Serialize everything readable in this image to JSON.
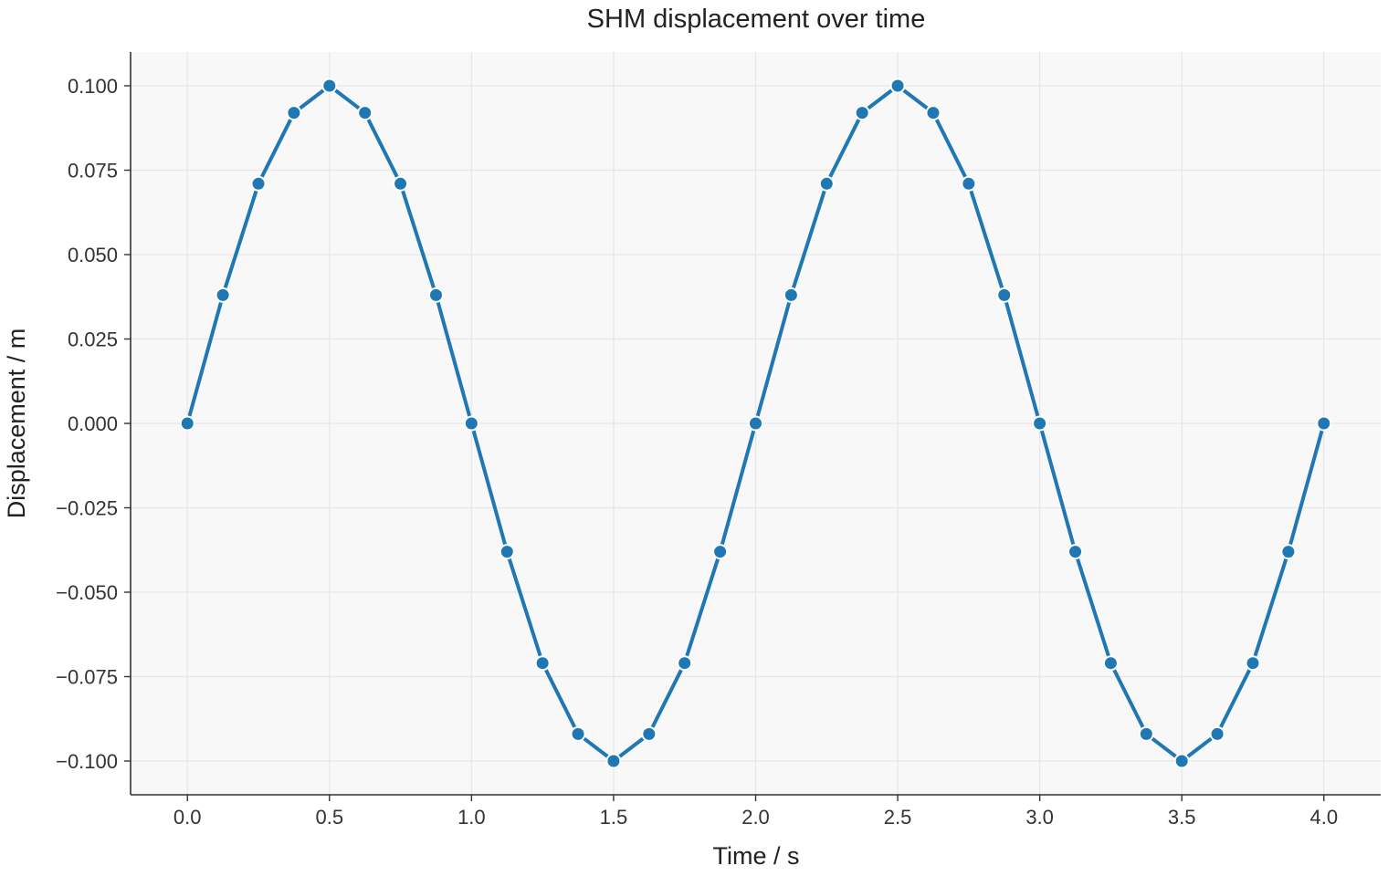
{
  "chart_data": {
    "type": "line",
    "title": "SHM displacement over time",
    "xlabel": "Time / s",
    "ylabel": "Displacement / m",
    "xlim": [
      -0.2,
      4.2
    ],
    "ylim": [
      -0.11,
      0.11
    ],
    "x_ticks": [
      0.0,
      0.5,
      1.0,
      1.5,
      2.0,
      2.5,
      3.0,
      3.5,
      4.0
    ],
    "x_tick_labels": [
      "0.0",
      "0.5",
      "1.0",
      "1.5",
      "2.0",
      "2.5",
      "3.0",
      "3.5",
      "4.0"
    ],
    "y_ticks": [
      0.1,
      0.075,
      0.05,
      0.025,
      0.0,
      -0.025,
      -0.05,
      -0.075,
      -0.1
    ],
    "y_tick_labels": [
      "0.100",
      "0.075",
      "0.050",
      "0.025",
      "0.000",
      "−0.025",
      "−0.050",
      "−0.075",
      "−0.100"
    ],
    "grid": true,
    "series": [
      {
        "color": "#1f77b4",
        "x": [
          0.0,
          0.125,
          0.25,
          0.375,
          0.5,
          0.625,
          0.75,
          0.875,
          1.0,
          1.125,
          1.25,
          1.375,
          1.5,
          1.625,
          1.75,
          1.875,
          2.0,
          2.125,
          2.25,
          2.375,
          2.5,
          2.625,
          2.75,
          2.875,
          3.0,
          3.125,
          3.25,
          3.375,
          3.5,
          3.625,
          3.75,
          3.875,
          4.0
        ],
        "y": [
          0.0,
          0.038,
          0.071,
          0.092,
          0.1,
          0.092,
          0.071,
          0.038,
          0.0,
          -0.038,
          -0.071,
          -0.092,
          -0.1,
          -0.092,
          -0.071,
          -0.038,
          0.0,
          0.038,
          0.071,
          0.092,
          0.1,
          0.092,
          0.071,
          0.038,
          0.0,
          -0.038,
          -0.071,
          -0.092,
          -0.1,
          -0.092,
          -0.071,
          -0.038,
          0.0
        ]
      }
    ]
  },
  "colors": {
    "plot_background": "#f8f8f8",
    "line": "#1f77b4",
    "marker_edge": "#ffffff"
  }
}
